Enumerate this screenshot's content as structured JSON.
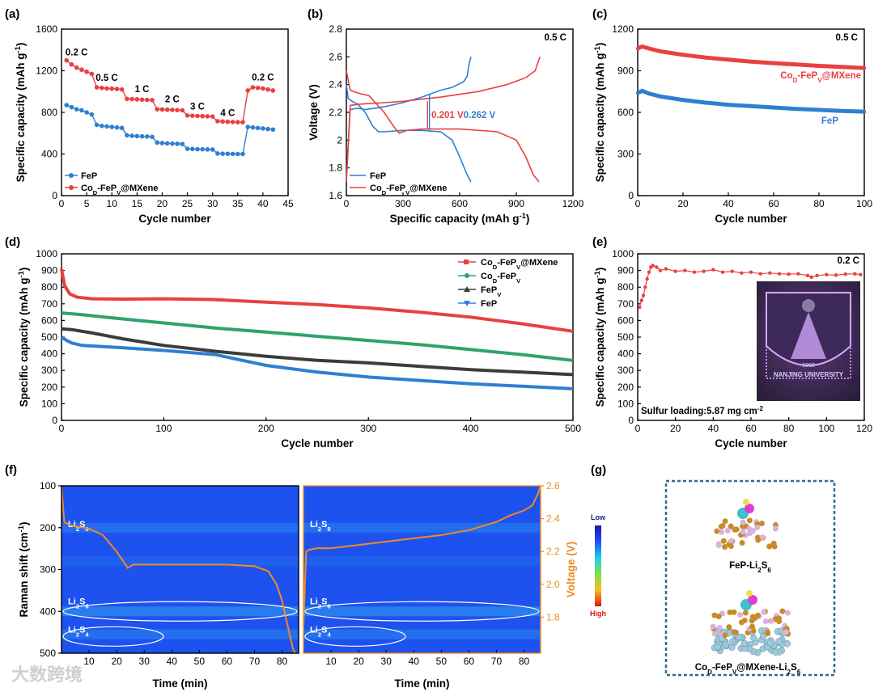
{
  "panel_labels": [
    "(a)",
    "(b)",
    "(c)",
    "(d)",
    "(e)",
    "(f)",
    "(g)"
  ],
  "watermark": "大数跨境",
  "colors": {
    "fep": "#2f7fd1",
    "cod": "#e8413f",
    "cod_fep": "#2fa36b",
    "fepv": "#3c3c3c",
    "voltage": "#f08a23"
  },
  "chart_data": [
    {
      "panel": "(a)",
      "type": "scatter",
      "xlabel": "Cycle number",
      "ylabel": "Specific capacity (mAh g⁻¹)",
      "xlim": [
        0,
        45
      ],
      "ylim": [
        0,
        1600
      ],
      "xticks": [
        0,
        5,
        10,
        15,
        20,
        25,
        30,
        35,
        40,
        45
      ],
      "yticks": [
        0,
        400,
        800,
        1200,
        1600
      ],
      "rate_labels": [
        "0.2 C",
        "0.5 C",
        "1 C",
        "2 C",
        "3 C",
        "4 C",
        "0.2 C"
      ],
      "series": [
        {
          "name": "FeP",
          "values": [
            870,
            850,
            830,
            820,
            800,
            780,
            680,
            670,
            665,
            660,
            655,
            650,
            580,
            575,
            572,
            570,
            568,
            565,
            510,
            505,
            502,
            500,
            498,
            496,
            450,
            448,
            446,
            445,
            444,
            443,
            405,
            403,
            402,
            401,
            400,
            400,
            660,
            655,
            650,
            645,
            640,
            635
          ]
        },
        {
          "name": "CoD-FePV@MXene",
          "values": [
            1300,
            1260,
            1230,
            1210,
            1190,
            1170,
            1040,
            1035,
            1030,
            1028,
            1025,
            1020,
            930,
            928,
            925,
            922,
            920,
            918,
            830,
            828,
            826,
            824,
            822,
            820,
            770,
            768,
            766,
            764,
            762,
            760,
            715,
            712,
            710,
            708,
            706,
            705,
            1010,
            1040,
            1035,
            1030,
            1020,
            1010
          ]
        }
      ]
    },
    {
      "panel": "(b)",
      "type": "line",
      "xlabel": "Specific capacity (mAh g⁻¹)",
      "ylabel": "Voltage (V)",
      "xlim": [
        0,
        1200
      ],
      "ylim": [
        1.6,
        2.8
      ],
      "xticks": [
        0,
        300,
        600,
        900,
        1200
      ],
      "yticks": [
        1.6,
        1.8,
        2.0,
        2.2,
        2.4,
        2.6,
        2.8
      ],
      "rate": "0.5 C",
      "annotations": [
        "0.201 V",
        "0.262 V"
      ],
      "series": [
        {
          "name": "FeP (discharge)",
          "x": [
            0,
            10,
            30,
            60,
            100,
            140,
            170,
            200,
            300,
            400,
            500,
            560,
            600,
            640,
            660
          ],
          "y": [
            2.4,
            2.3,
            2.28,
            2.26,
            2.2,
            2.1,
            2.06,
            2.06,
            2.07,
            2.07,
            2.06,
            2.0,
            1.88,
            1.75,
            1.7
          ]
        },
        {
          "name": "FeP (charge)",
          "x": [
            0,
            20,
            60,
            100,
            200,
            300,
            400,
            500,
            560,
            620,
            640,
            650,
            660
          ],
          "y": [
            1.7,
            2.22,
            2.23,
            2.22,
            2.24,
            2.27,
            2.31,
            2.36,
            2.38,
            2.42,
            2.46,
            2.55,
            2.6
          ]
        },
        {
          "name": "CoD-FePV@MXene (discharge)",
          "x": [
            0,
            20,
            60,
            120,
            200,
            250,
            280,
            320,
            400,
            600,
            800,
            900,
            950,
            990,
            1020
          ],
          "y": [
            2.5,
            2.36,
            2.34,
            2.32,
            2.2,
            2.1,
            2.05,
            2.07,
            2.08,
            2.08,
            2.06,
            2.0,
            1.88,
            1.75,
            1.7
          ]
        },
        {
          "name": "CoD-FePV@MXene (charge)",
          "x": [
            0,
            20,
            80,
            200,
            300,
            500,
            700,
            850,
            950,
            1000,
            1020,
            1025
          ],
          "y": [
            1.7,
            2.25,
            2.26,
            2.27,
            2.28,
            2.31,
            2.35,
            2.4,
            2.45,
            2.5,
            2.58,
            2.6
          ]
        }
      ],
      "legend": [
        "FeP",
        "CoD-FePV@MXene"
      ]
    },
    {
      "panel": "(c)",
      "type": "line",
      "xlabel": "Cycle number",
      "ylabel": "Specific capacity (mAh g⁻¹)",
      "xlim": [
        0,
        100
      ],
      "ylim": [
        0,
        1200
      ],
      "xticks": [
        0,
        20,
        40,
        60,
        80,
        100
      ],
      "yticks": [
        0,
        300,
        600,
        900,
        1200
      ],
      "rate": "0.5 C",
      "series": [
        {
          "name": "CoD-FePV@MXene",
          "x": [
            0,
            2,
            5,
            10,
            20,
            30,
            40,
            50,
            60,
            70,
            80,
            90,
            100
          ],
          "y": [
            1060,
            1075,
            1060,
            1040,
            1015,
            995,
            980,
            965,
            955,
            945,
            935,
            928,
            920
          ]
        },
        {
          "name": "FeP",
          "x": [
            0,
            2,
            5,
            10,
            20,
            30,
            40,
            50,
            60,
            70,
            80,
            90,
            100
          ],
          "y": [
            740,
            755,
            735,
            715,
            690,
            670,
            655,
            645,
            635,
            625,
            618,
            610,
            605
          ]
        }
      ]
    },
    {
      "panel": "(d)",
      "type": "line",
      "xlabel": "Cycle number",
      "ylabel": "Specific capacity (mAh g⁻¹)",
      "xlim": [
        0,
        500
      ],
      "ylim": [
        0,
        1000
      ],
      "xticks": [
        0,
        100,
        200,
        300,
        400,
        500
      ],
      "yticks": [
        0,
        100,
        200,
        300,
        400,
        500,
        600,
        700,
        800,
        900,
        1000
      ],
      "series": [
        {
          "name": "CoD-FePV@MXene",
          "x": [
            0,
            3,
            8,
            15,
            30,
            60,
            100,
            150,
            200,
            250,
            300,
            350,
            400,
            450,
            500
          ],
          "y": [
            910,
            810,
            760,
            740,
            730,
            728,
            730,
            725,
            710,
            695,
            675,
            650,
            620,
            580,
            535
          ]
        },
        {
          "name": "CoD-FePV",
          "x": [
            0,
            20,
            50,
            100,
            150,
            200,
            250,
            300,
            350,
            400,
            450,
            500
          ],
          "y": [
            645,
            635,
            615,
            585,
            555,
            530,
            505,
            480,
            455,
            425,
            395,
            360
          ]
        },
        {
          "name": "FePV",
          "x": [
            0,
            10,
            30,
            60,
            100,
            150,
            200,
            250,
            300,
            350,
            400,
            450,
            500
          ],
          "y": [
            550,
            545,
            525,
            490,
            450,
            415,
            385,
            360,
            345,
            325,
            305,
            290,
            275
          ]
        },
        {
          "name": "FeP",
          "x": [
            0,
            5,
            10,
            20,
            50,
            100,
            150,
            200,
            250,
            300,
            350,
            400,
            450,
            500
          ],
          "y": [
            500,
            480,
            465,
            450,
            440,
            420,
            395,
            330,
            290,
            260,
            240,
            220,
            205,
            190
          ]
        }
      ]
    },
    {
      "panel": "(e)",
      "type": "scatter",
      "xlabel": "Cycle number",
      "ylabel": "Specific capacity (mAh g⁻¹)",
      "xlim": [
        0,
        120
      ],
      "ylim": [
        0,
        1000
      ],
      "xticks": [
        0,
        20,
        40,
        60,
        80,
        100,
        120
      ],
      "yticks": [
        0,
        100,
        200,
        300,
        400,
        500,
        600,
        700,
        800,
        900,
        1000
      ],
      "rate": "0.2 C",
      "note": "Sulfur loading:5.87 mg cm⁻²",
      "inset_text": "NANJING UNIVERSITY",
      "inset_year": "1902",
      "series": [
        {
          "name": "CoD-FePV@MXene",
          "x": [
            1,
            2,
            3,
            4,
            5,
            6,
            7,
            8,
            10,
            12,
            15,
            20,
            25,
            30,
            35,
            40,
            45,
            50,
            55,
            60,
            65,
            70,
            75,
            80,
            85,
            90,
            92,
            95,
            100,
            105,
            110,
            115,
            118
          ],
          "y": [
            680,
            720,
            750,
            800,
            850,
            890,
            920,
            930,
            920,
            900,
            910,
            895,
            900,
            890,
            895,
            905,
            890,
            895,
            885,
            890,
            880,
            885,
            880,
            878,
            880,
            870,
            860,
            870,
            875,
            872,
            878,
            880,
            875
          ]
        }
      ]
    },
    {
      "panel": "(f)",
      "type": "heatmap",
      "ylabel": "Raman shift (cm⁻¹)",
      "xlabel": "Time (min)",
      "ylim": [
        100,
        500
      ],
      "yticks": [
        100,
        200,
        300,
        400,
        500
      ],
      "xticks": [
        10,
        20,
        30,
        40,
        50,
        60,
        70,
        80
      ],
      "voltage_label": "Voltage (V)",
      "voltage_ticks": [
        1.8,
        2.0,
        2.2,
        2.4,
        2.6
      ],
      "colorbar": {
        "low": "Low",
        "high": "High"
      },
      "species_labels": [
        "Li2S8",
        "Li2S6",
        "Li2S4"
      ],
      "discharge_voltage": {
        "t": [
          0,
          1,
          3,
          6,
          10,
          15,
          20,
          24,
          26,
          30,
          40,
          50,
          60,
          70,
          75,
          78,
          80,
          82,
          84,
          85
        ],
        "v": [
          2.6,
          2.38,
          2.36,
          2.35,
          2.34,
          2.3,
          2.2,
          2.1,
          2.12,
          2.12,
          2.12,
          2.12,
          2.12,
          2.11,
          2.08,
          2.0,
          1.9,
          1.75,
          1.6,
          1.58
        ]
      },
      "charge_voltage": {
        "t": [
          0,
          1,
          2,
          5,
          10,
          20,
          30,
          40,
          50,
          60,
          70,
          75,
          80,
          83,
          85,
          86
        ],
        "v": [
          1.75,
          2.2,
          2.21,
          2.22,
          2.22,
          2.24,
          2.26,
          2.28,
          2.3,
          2.33,
          2.38,
          2.42,
          2.45,
          2.48,
          2.55,
          2.6
        ]
      }
    }
  ],
  "panel_b_legend": {
    "fep": "FeP",
    "cod": "CoD-FePV@MXene"
  },
  "panel_g": {
    "label1_main": "FeP-Li",
    "label1_sub1": "2",
    "label1_mid": "S",
    "label1_sub2": "6",
    "label2_a": "Co",
    "label2_sub_d": "D",
    "label2_b": "-FeP",
    "label2_sub_v": "V",
    "label2_c": "@MXene-Li",
    "label2_sub2": "2",
    "label2_s": "S",
    "label2_sub6": "6"
  }
}
